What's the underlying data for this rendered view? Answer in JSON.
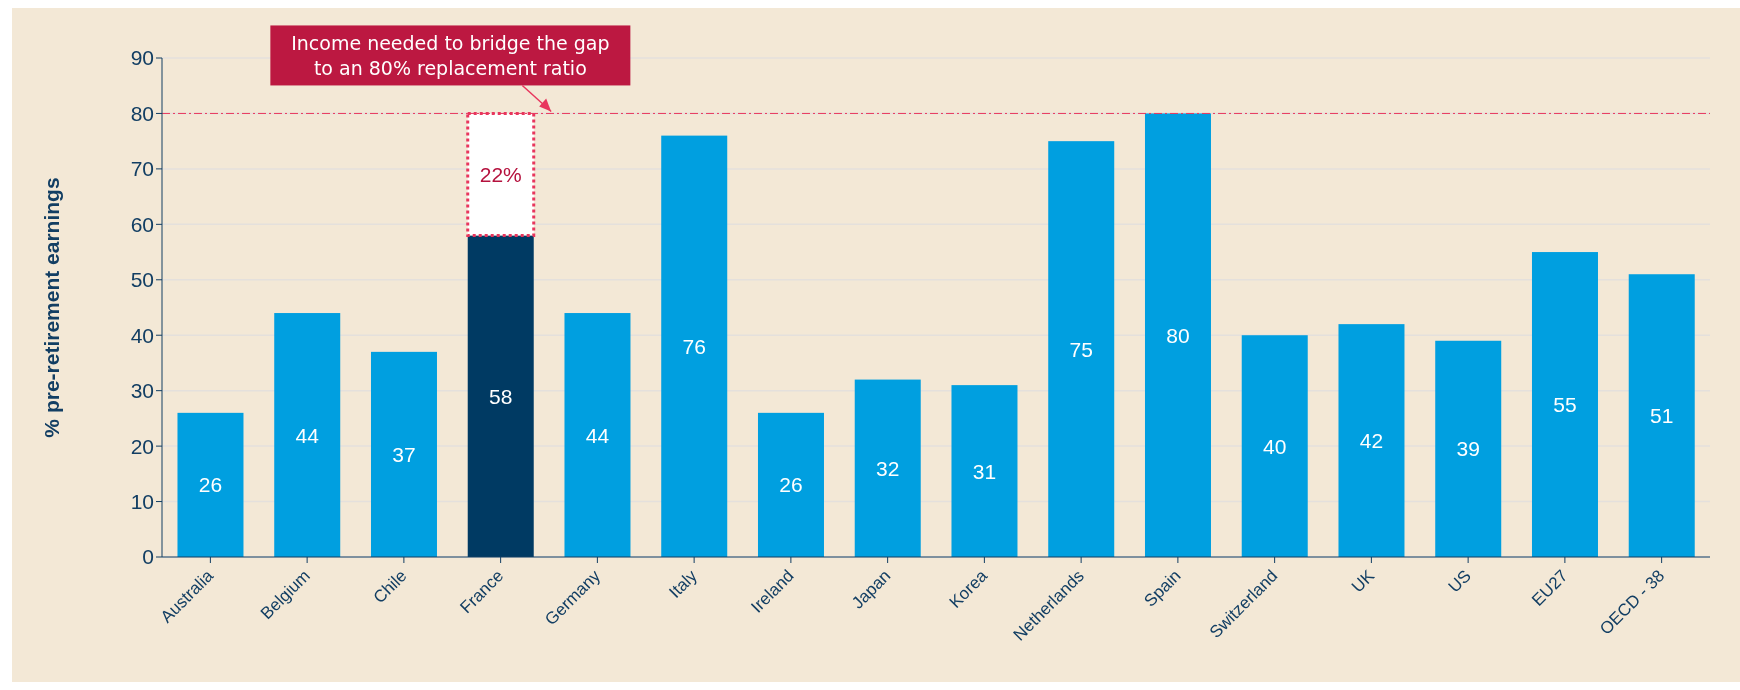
{
  "chart_data": {
    "type": "bar",
    "ylabel": "% pre-retirement earnings",
    "categories": [
      "Australia",
      "Belgium",
      "Chile",
      "France",
      "Germany",
      "Italy",
      "Ireland",
      "Japan",
      "Korea",
      "Netherlands",
      "Spain",
      "Switzerland",
      "UK",
      "US",
      "EU27",
      "OECD - 38"
    ],
    "stacked": true,
    "series": [
      {
        "color": "#009fe0",
        "colors": [
          "#009fe0",
          "#009fe0",
          "#009fe0",
          "#003a63",
          "#009fe0",
          "#009fe0",
          "#009fe0",
          "#009fe0",
          "#009fe0",
          "#009fe0",
          "#009fe0",
          "#009fe0",
          "#009fe0",
          "#009fe0",
          "#009fe0",
          "#009fe0"
        ],
        "values": [
          26,
          44,
          37,
          58,
          44,
          76,
          26,
          32,
          31,
          75,
          80,
          40,
          42,
          39,
          55,
          51
        ],
        "value_labels": [
          "26",
          "44",
          "37",
          "58",
          "44",
          "76",
          "26",
          "32",
          "31",
          "75",
          "80",
          "40",
          "42",
          "39",
          "55",
          "51"
        ]
      },
      {
        "color": "#ffffff",
        "values": [
          null,
          null,
          null,
          22,
          null,
          null,
          null,
          null,
          null,
          null,
          null,
          null,
          null,
          null,
          null,
          null
        ],
        "value_labels": [
          null,
          null,
          null,
          "22%",
          null,
          null,
          null,
          null,
          null,
          null,
          null,
          null,
          null,
          null,
          null,
          null
        ]
      }
    ],
    "ylim": [
      0,
      90
    ],
    "yticks": [
      0,
      10,
      20,
      30,
      40,
      50,
      60,
      70,
      80,
      90
    ],
    "grid": "y",
    "ref_lines": [
      {
        "axis": "y",
        "value": 80,
        "color": "#e8365d",
        "line_style": "dashdot",
        "label": "Income needed to bridge the gap to an 80% replacement ratio"
      }
    ]
  }
}
